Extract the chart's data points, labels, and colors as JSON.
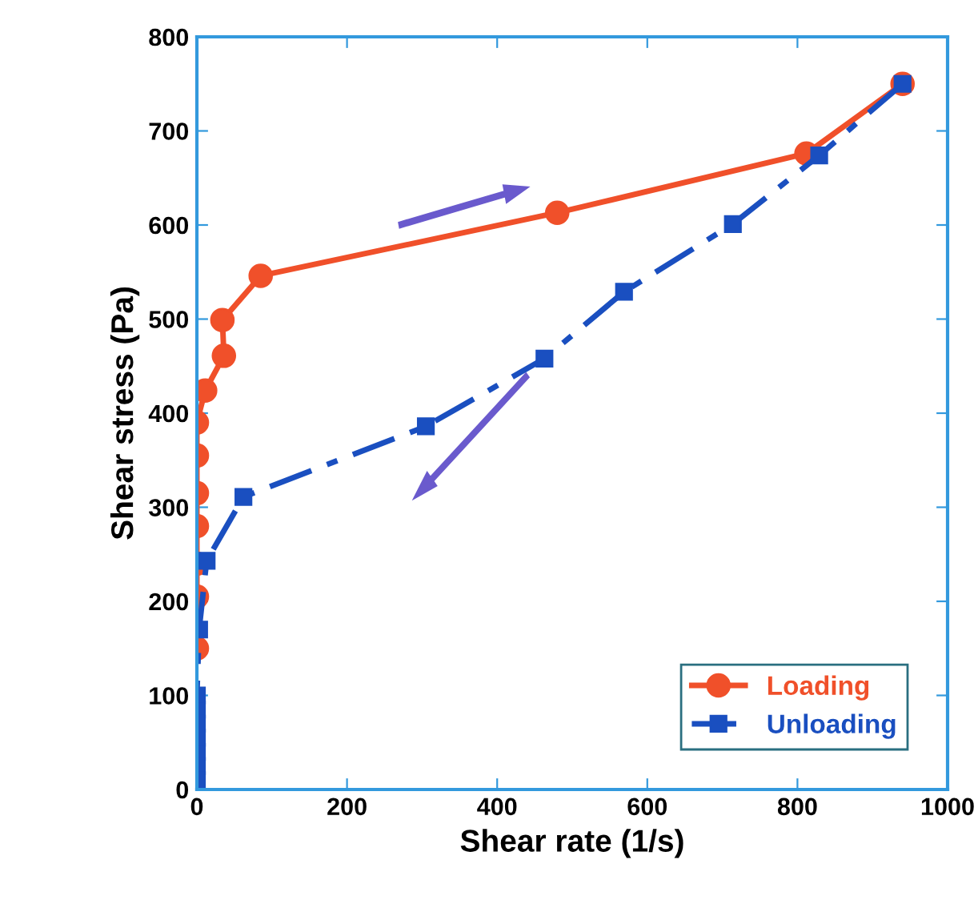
{
  "chart_data": {
    "type": "line",
    "xlabel": "Shear rate (1/s)",
    "ylabel": "Shear stress (Pa)",
    "xlim": [
      0,
      1000
    ],
    "xticks": [
      0,
      200,
      400,
      600,
      800,
      1000
    ],
    "ylim": [
      0,
      800
    ],
    "yticks": [
      0,
      100,
      200,
      300,
      400,
      500,
      600,
      700,
      800
    ],
    "grid": false,
    "legend": "bottom right",
    "series": [
      {
        "name": "Loading",
        "color": "#f0502a",
        "marker": "circle",
        "line_style": "solid",
        "x": [
          0,
          0,
          0,
          0,
          0,
          0,
          0,
          11,
          36,
          34,
          85,
          480,
          812,
          940
        ],
        "values": [
          150,
          205,
          240,
          280,
          315,
          355,
          390,
          424,
          461,
          499,
          546,
          613,
          676,
          750
        ]
      },
      {
        "name": "Unloading",
        "color": "#1a4fc0",
        "marker": "square",
        "line_style": "dashdot",
        "x": [
          940,
          829,
          714,
          569,
          463,
          305,
          62,
          13,
          3,
          0,
          0,
          0,
          0,
          0,
          0,
          0
        ],
        "values": [
          750,
          674,
          601,
          529,
          458,
          386,
          311,
          243,
          170,
          100,
          85,
          70,
          55,
          40,
          25,
          10
        ]
      }
    ]
  }
}
